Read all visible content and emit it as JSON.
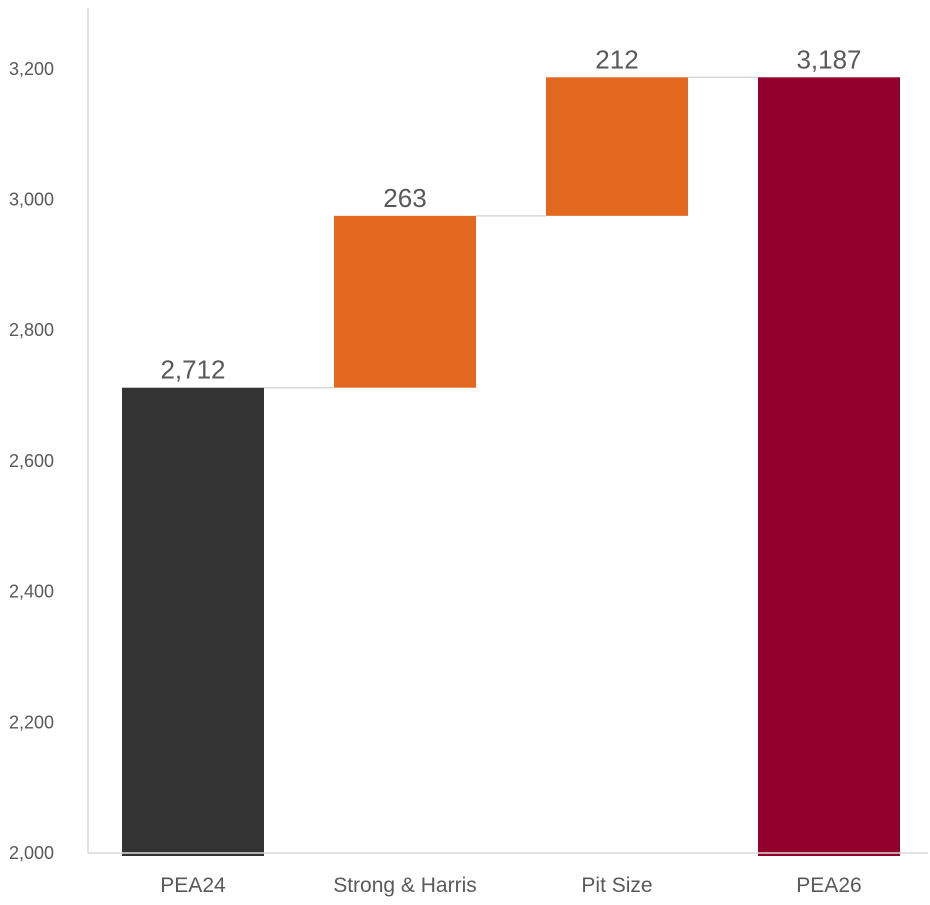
{
  "chart_data": {
    "type": "waterfall",
    "title": "",
    "xlabel": "",
    "ylabel": "",
    "ylim": [
      2000,
      3300
    ],
    "yticks": [
      2000,
      2200,
      2400,
      2600,
      2800,
      3000,
      3200
    ],
    "ytick_labels": [
      "2,000",
      "2,200",
      "2,400",
      "2,600",
      "2,800",
      "3,000",
      "3,200"
    ],
    "grid": false,
    "legend": "none",
    "categories": [
      "PEA24",
      "Strong & Harris",
      "Pit Size",
      "PEA26"
    ],
    "bars": [
      {
        "category": "PEA24",
        "kind": "total",
        "start": 2000,
        "end": 2712,
        "label": "2,712",
        "color": "#333333"
      },
      {
        "category": "Strong & Harris",
        "kind": "increase",
        "start": 2712,
        "end": 2975,
        "label": "263",
        "color": "#E2671F"
      },
      {
        "category": "Pit Size",
        "kind": "increase",
        "start": 2975,
        "end": 3187,
        "label": "212",
        "color": "#E2671F"
      },
      {
        "category": "PEA26",
        "kind": "total",
        "start": 2000,
        "end": 3187,
        "label": "3,187",
        "color": "#94002D"
      }
    ],
    "connector_color": "#D9D9D9",
    "axis_color": "#D9D9D9"
  }
}
